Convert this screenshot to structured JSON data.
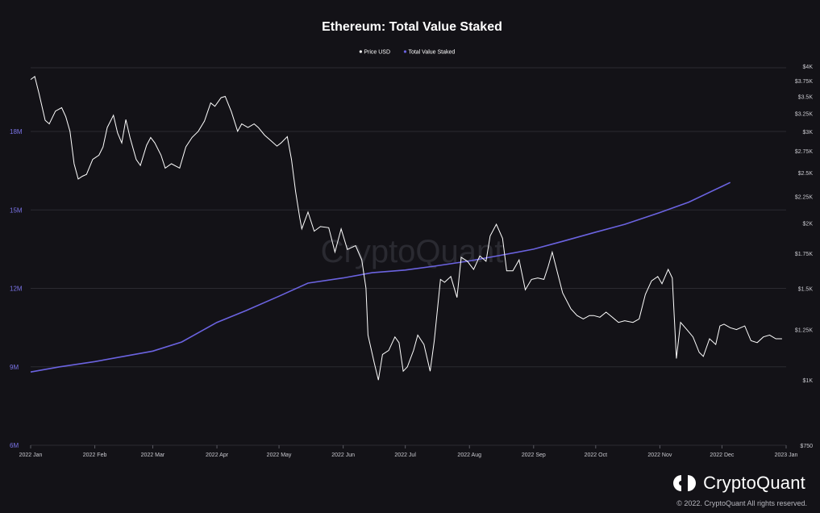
{
  "chart_data": {
    "type": "line",
    "title": "Ethereum: Total Value Staked",
    "legend_position": "top-center",
    "x_ticks": [
      "2022 Jan",
      "2022 Feb",
      "2022 Mar",
      "2022 Apr",
      "2022 May",
      "2022 Jun",
      "2022 Jul",
      "2022 Aug",
      "2022 Sep",
      "2022 Oct",
      "2022 Nov",
      "2022 Dec",
      "2023 Jan"
    ],
    "x_range": [
      "2022-01-01",
      "2023-01-01"
    ],
    "left_axis": {
      "ticks": [
        "6M",
        "9M",
        "12M",
        "15M",
        "18M"
      ],
      "range": [
        6000000,
        20500000
      ],
      "color": "#7b74e8"
    },
    "right_axis": {
      "ticks": [
        "$750",
        "$1K",
        "$1.25K",
        "$1.5K",
        "$1.75K",
        "$2K",
        "$2.25K",
        "$2.5K",
        "$2.75K",
        "$3K",
        "$3.25K",
        "$3.5K",
        "$3.75K",
        "$4K"
      ],
      "range": [
        750,
        4000
      ],
      "scale": "log"
    },
    "grid": true,
    "series": [
      {
        "name": "Price USD",
        "axis": "right",
        "color": "#ffffff",
        "points": [
          [
            "2022-01-01",
            3770
          ],
          [
            "2022-01-03",
            3820
          ],
          [
            "2022-01-05",
            3550
          ],
          [
            "2022-01-08",
            3150
          ],
          [
            "2022-01-10",
            3100
          ],
          [
            "2022-01-13",
            3280
          ],
          [
            "2022-01-16",
            3330
          ],
          [
            "2022-01-18",
            3200
          ],
          [
            "2022-01-20",
            3000
          ],
          [
            "2022-01-22",
            2600
          ],
          [
            "2022-01-24",
            2430
          ],
          [
            "2022-01-26",
            2460
          ],
          [
            "2022-01-28",
            2480
          ],
          [
            "2022-01-31",
            2650
          ],
          [
            "2022-02-03",
            2700
          ],
          [
            "2022-02-05",
            2800
          ],
          [
            "2022-02-07",
            3050
          ],
          [
            "2022-02-10",
            3220
          ],
          [
            "2022-02-12",
            2980
          ],
          [
            "2022-02-14",
            2850
          ],
          [
            "2022-02-16",
            3160
          ],
          [
            "2022-02-18",
            2920
          ],
          [
            "2022-02-21",
            2650
          ],
          [
            "2022-02-23",
            2580
          ],
          [
            "2022-02-26",
            2820
          ],
          [
            "2022-02-28",
            2920
          ],
          [
            "2022-03-02",
            2850
          ],
          [
            "2022-03-05",
            2700
          ],
          [
            "2022-03-07",
            2550
          ],
          [
            "2022-03-10",
            2600
          ],
          [
            "2022-03-14",
            2550
          ],
          [
            "2022-03-17",
            2800
          ],
          [
            "2022-03-20",
            2920
          ],
          [
            "2022-03-23",
            3000
          ],
          [
            "2022-03-26",
            3140
          ],
          [
            "2022-03-29",
            3400
          ],
          [
            "2022-03-31",
            3350
          ],
          [
            "2022-04-03",
            3480
          ],
          [
            "2022-04-05",
            3500
          ],
          [
            "2022-04-08",
            3270
          ],
          [
            "2022-04-11",
            3000
          ],
          [
            "2022-04-13",
            3100
          ],
          [
            "2022-04-16",
            3050
          ],
          [
            "2022-04-19",
            3100
          ],
          [
            "2022-04-21",
            3050
          ],
          [
            "2022-04-24",
            2950
          ],
          [
            "2022-04-27",
            2880
          ],
          [
            "2022-04-30",
            2810
          ],
          [
            "2022-05-02",
            2850
          ],
          [
            "2022-05-05",
            2930
          ],
          [
            "2022-05-07",
            2650
          ],
          [
            "2022-05-09",
            2300
          ],
          [
            "2022-05-11",
            2050
          ],
          [
            "2022-05-12",
            1950
          ],
          [
            "2022-05-15",
            2100
          ],
          [
            "2022-05-18",
            1930
          ],
          [
            "2022-05-21",
            1970
          ],
          [
            "2022-05-25",
            1960
          ],
          [
            "2022-05-28",
            1760
          ],
          [
            "2022-05-31",
            1950
          ],
          [
            "2022-06-03",
            1780
          ],
          [
            "2022-06-07",
            1810
          ],
          [
            "2022-06-10",
            1700
          ],
          [
            "2022-06-12",
            1500
          ],
          [
            "2022-06-13",
            1220
          ],
          [
            "2022-06-16",
            1080
          ],
          [
            "2022-06-18",
            1000
          ],
          [
            "2022-06-20",
            1120
          ],
          [
            "2022-06-23",
            1140
          ],
          [
            "2022-06-26",
            1210
          ],
          [
            "2022-06-28",
            1180
          ],
          [
            "2022-06-30",
            1040
          ],
          [
            "2022-07-02",
            1060
          ],
          [
            "2022-07-05",
            1140
          ],
          [
            "2022-07-07",
            1220
          ],
          [
            "2022-07-10",
            1170
          ],
          [
            "2022-07-13",
            1040
          ],
          [
            "2022-07-15",
            1190
          ],
          [
            "2022-07-18",
            1560
          ],
          [
            "2022-07-20",
            1540
          ],
          [
            "2022-07-23",
            1580
          ],
          [
            "2022-07-26",
            1440
          ],
          [
            "2022-07-28",
            1720
          ],
          [
            "2022-07-31",
            1690
          ],
          [
            "2022-08-03",
            1630
          ],
          [
            "2022-08-06",
            1730
          ],
          [
            "2022-08-09",
            1690
          ],
          [
            "2022-08-11",
            1890
          ],
          [
            "2022-08-14",
            1990
          ],
          [
            "2022-08-17",
            1870
          ],
          [
            "2022-08-19",
            1620
          ],
          [
            "2022-08-22",
            1620
          ],
          [
            "2022-08-25",
            1700
          ],
          [
            "2022-08-28",
            1490
          ],
          [
            "2022-08-31",
            1560
          ],
          [
            "2022-09-03",
            1570
          ],
          [
            "2022-09-06",
            1560
          ],
          [
            "2022-09-08",
            1650
          ],
          [
            "2022-09-10",
            1760
          ],
          [
            "2022-09-13",
            1580
          ],
          [
            "2022-09-15",
            1470
          ],
          [
            "2022-09-19",
            1370
          ],
          [
            "2022-09-22",
            1330
          ],
          [
            "2022-09-25",
            1310
          ],
          [
            "2022-09-28",
            1330
          ],
          [
            "2022-09-30",
            1330
          ],
          [
            "2022-10-03",
            1320
          ],
          [
            "2022-10-06",
            1350
          ],
          [
            "2022-10-09",
            1320
          ],
          [
            "2022-10-12",
            1290
          ],
          [
            "2022-10-15",
            1300
          ],
          [
            "2022-10-19",
            1290
          ],
          [
            "2022-10-22",
            1310
          ],
          [
            "2022-10-25",
            1460
          ],
          [
            "2022-10-28",
            1550
          ],
          [
            "2022-10-31",
            1580
          ],
          [
            "2022-11-02",
            1530
          ],
          [
            "2022-11-05",
            1630
          ],
          [
            "2022-11-07",
            1570
          ],
          [
            "2022-11-09",
            1100
          ],
          [
            "2022-11-11",
            1290
          ],
          [
            "2022-11-14",
            1250
          ],
          [
            "2022-11-17",
            1210
          ],
          [
            "2022-11-20",
            1130
          ],
          [
            "2022-11-22",
            1110
          ],
          [
            "2022-11-25",
            1200
          ],
          [
            "2022-11-28",
            1170
          ],
          [
            "2022-11-30",
            1270
          ],
          [
            "2022-12-02",
            1280
          ],
          [
            "2022-12-05",
            1260
          ],
          [
            "2022-12-08",
            1250
          ],
          [
            "2022-12-10",
            1260
          ],
          [
            "2022-12-12",
            1270
          ],
          [
            "2022-12-15",
            1190
          ],
          [
            "2022-12-18",
            1180
          ],
          [
            "2022-12-21",
            1210
          ],
          [
            "2022-12-24",
            1220
          ],
          [
            "2022-12-27",
            1200
          ],
          [
            "2022-12-30",
            1200
          ]
        ]
      },
      {
        "name": "Total Value Staked",
        "axis": "left",
        "color": "#6b63e0",
        "points": [
          [
            "2022-01-01",
            8800000
          ],
          [
            "2022-01-15",
            9000000
          ],
          [
            "2022-02-01",
            9200000
          ],
          [
            "2022-02-15",
            9400000
          ],
          [
            "2022-03-01",
            9600000
          ],
          [
            "2022-03-15",
            9950000
          ],
          [
            "2022-04-01",
            10700000
          ],
          [
            "2022-04-15",
            11150000
          ],
          [
            "2022-05-01",
            11700000
          ],
          [
            "2022-05-15",
            12200000
          ],
          [
            "2022-06-01",
            12400000
          ],
          [
            "2022-06-15",
            12600000
          ],
          [
            "2022-07-01",
            12700000
          ],
          [
            "2022-07-15",
            12850000
          ],
          [
            "2022-08-01",
            13050000
          ],
          [
            "2022-08-15",
            13250000
          ],
          [
            "2022-09-01",
            13500000
          ],
          [
            "2022-09-15",
            13800000
          ],
          [
            "2022-10-01",
            14150000
          ],
          [
            "2022-10-15",
            14450000
          ],
          [
            "2022-11-01",
            14900000
          ],
          [
            "2022-11-15",
            15300000
          ],
          [
            "2022-12-01",
            15900000
          ],
          [
            "2022-12-05",
            16050000
          ]
        ]
      }
    ]
  },
  "watermark": "CryptoQuant",
  "brand": {
    "name": "CryptoQuant",
    "copyright": "© 2022. CryptoQuant All rights reserved."
  },
  "colors": {
    "background": "#131217",
    "grid": "#2b2b31",
    "price": "#ffffff",
    "staked": "#6b63e0"
  }
}
